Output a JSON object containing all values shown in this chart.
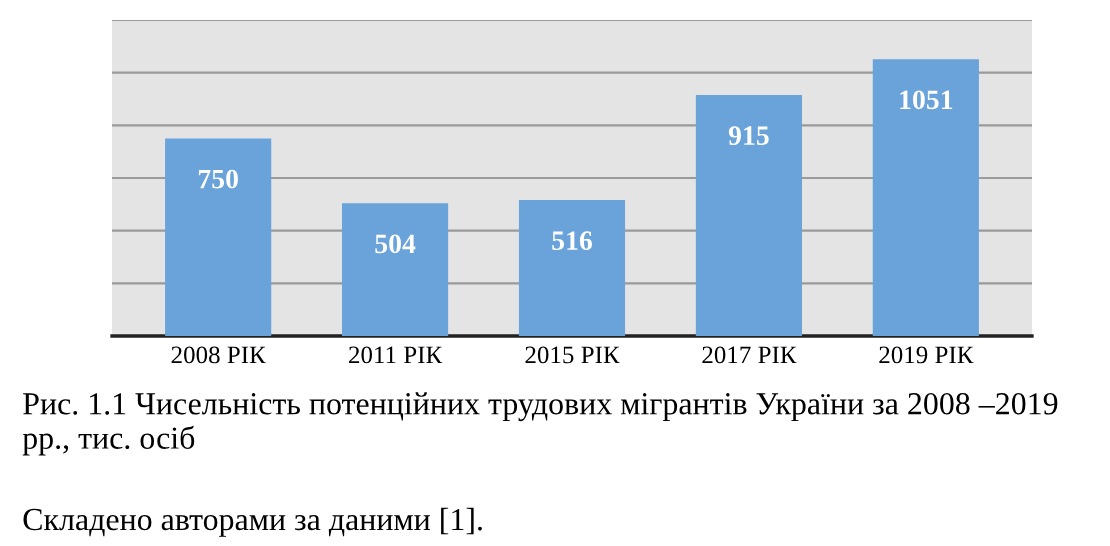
{
  "chart_data": {
    "type": "bar",
    "title": "Рис. 1.1 Чисельність потенційних трудових мігрантів України за 2008 –2019 рр., тис. осіб",
    "annotations": [
      "Складено авторами за даними [1]."
    ],
    "categories": [
      "2008 РІК",
      "2011 РІК",
      "2015 РІК",
      "2017 РІК",
      "2019 РІК"
    ],
    "values": [
      750,
      504,
      516,
      915,
      1051
    ],
    "color": "#6aa3d9",
    "ylim": [
      0,
      1200
    ],
    "yticks": [
      {
        "value": 0,
        "label": null
      },
      {
        "value": 200,
        "label": null
      },
      {
        "value": 400,
        "label": null
      },
      {
        "value": 600,
        "label": null
      },
      {
        "value": 800,
        "label": null
      },
      {
        "value": 1000,
        "label": null
      },
      {
        "value": 1200,
        "label": null
      }
    ],
    "tick_labels": "x",
    "grid": "y",
    "data_labels": true
  }
}
